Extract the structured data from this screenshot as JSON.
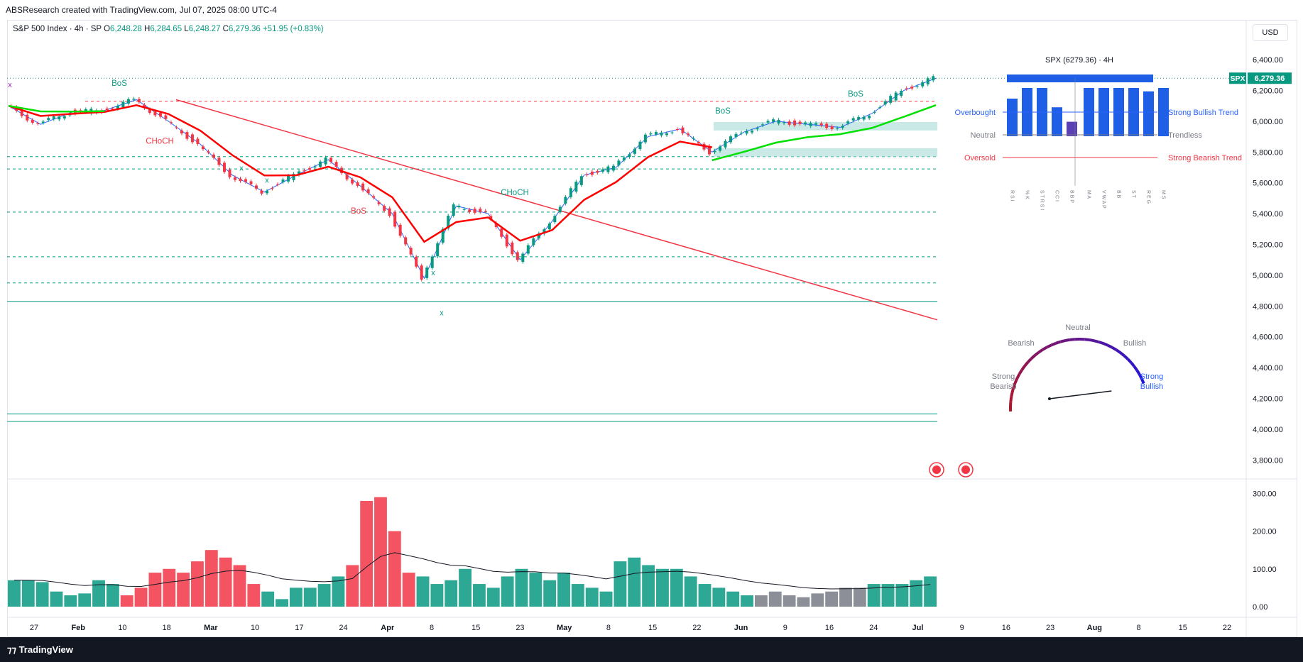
{
  "header": {
    "credit": "ABSResearch created with TradingView.com, Jul 07, 2025 08:00 UTC-4",
    "symbol_desc": "S&P 500 Index · 4h · SP",
    "ohlc": [
      {
        "label": "O",
        "value": "6,248.28"
      },
      {
        "label": "H",
        "value": "6,284.65"
      },
      {
        "label": "L",
        "value": "6,248.27"
      },
      {
        "label": "C",
        "value": "6,279.36"
      }
    ],
    "change": "+51.95 (+0.83%)"
  },
  "currency_button": "USD",
  "price_tag": {
    "symbol": "SPX",
    "value": "6,279.36"
  },
  "footer": {
    "brand": "TradingView"
  },
  "colors": {
    "up": "#089981",
    "down": "#f23645",
    "ema_fast": "#ff0000",
    "ema_slow": "#00e000",
    "trendline": "#f23645",
    "structure": "#2962ff",
    "zone": "#b2dfdb",
    "tag": "#089981"
  },
  "chart_data": {
    "type": "line",
    "title": "S&P 500 Index · 4h · SP",
    "price_axis": {
      "ticks": [
        "6,400.00",
        "6,200.00",
        "6,000.00",
        "5,800.00",
        "5,600.00",
        "5,400.00",
        "5,200.00",
        "5,000.00",
        "4,800.00",
        "4,600.00",
        "4,400.00",
        "4,200.00",
        "4,000.00",
        "3,800.00"
      ],
      "ylim": [
        3700,
        6520
      ]
    },
    "volume_axis": {
      "ticks": [
        "300.00",
        "200.00",
        "100.00",
        "0.00"
      ],
      "ylim": [
        0,
        310
      ]
    },
    "time_axis": {
      "ticks": [
        "27",
        "Feb",
        "10",
        "18",
        "Mar",
        "10",
        "17",
        "24",
        "Apr",
        "8",
        "15",
        "23",
        "May",
        "8",
        "15",
        "22",
        "Jun",
        "9",
        "16",
        "24",
        "Jul",
        "9",
        "16",
        "23",
        "Aug",
        "8",
        "15",
        "22"
      ]
    },
    "last_price": 6279.36,
    "series": [
      {
        "name": "",
        "x": [
          "Jan 23",
          "Jan 27",
          "Feb 3",
          "Feb 10",
          "Feb 19",
          "Feb 24",
          "Mar 3",
          "Mar 10",
          "Mar 13",
          "Mar 17",
          "Mar 24",
          "Mar 28",
          "Apr 3",
          "Apr 7",
          "Apr 9",
          "Apr 15",
          "Apr 21",
          "Apr 25",
          "May 2",
          "May 8",
          "May 13",
          "May 19",
          "May 23",
          "Jun 2",
          "Jun 9",
          "Jun 13",
          "Jun 20",
          "Jun 24",
          "Jun 30",
          "Jul 3"
        ],
        "values": [
          6100,
          5980,
          6060,
          6070,
          6140,
          6000,
          5850,
          5650,
          5540,
          5650,
          5750,
          5580,
          5400,
          4980,
          5450,
          5400,
          5100,
          5350,
          5650,
          5700,
          5900,
          5950,
          5800,
          5930,
          6000,
          5980,
          5960,
          6050,
          6200,
          6279.36
        ]
      }
    ],
    "levels": [
      {
        "name": "",
        "value": 6130,
        "style": "dashed-red"
      },
      {
        "name": "",
        "value": 5770,
        "style": "dashed-green"
      },
      {
        "name": "",
        "value": 5690,
        "style": "dashed-green"
      },
      {
        "name": "",
        "value": 5410,
        "style": "dashed-green"
      },
      {
        "name": "",
        "value": 5120,
        "style": "dashed-green"
      },
      {
        "name": "",
        "value": 4950,
        "style": "dashed-green"
      },
      {
        "name": "",
        "value": 4830,
        "style": "solid-teal"
      },
      {
        "name": "",
        "value": 4100,
        "style": "solid-teal"
      },
      {
        "name": "",
        "value": 4050,
        "style": "solid-teal"
      }
    ],
    "annotations": [
      {
        "text": "BoS",
        "date": "Feb 10",
        "price": 6230,
        "color": "#089981"
      },
      {
        "text": "CHoCH",
        "date": "Feb 20",
        "price": 5855,
        "color": "#f23645"
      },
      {
        "text": "BoS",
        "date": "Apr 1",
        "price": 5400,
        "color": "#f23645"
      },
      {
        "text": "CHoCH",
        "date": "Apr 25",
        "price": 5520,
        "color": "#089981"
      },
      {
        "text": "BoS",
        "date": "May 21",
        "price": 6050,
        "color": "#089981"
      },
      {
        "text": "BoS",
        "date": "Jun 26",
        "price": 6160,
        "color": "#089981"
      },
      {
        "text": "x",
        "date": "Jan 23",
        "price": 6220,
        "color": "#9c27b0"
      },
      {
        "text": "x",
        "date": "Mar 7",
        "price": 5680,
        "color": "#089981"
      },
      {
        "text": "x",
        "date": "Mar 11",
        "price": 5600,
        "color": "#089981"
      },
      {
        "text": "x",
        "date": "Apr 6",
        "price": 5000,
        "color": "#089981"
      },
      {
        "text": "x",
        "date": "Apr 8",
        "price": 4740,
        "color": "#089981"
      }
    ],
    "volume": {
      "series": [
        {
          "name": "",
          "values": [
            70,
            70,
            65,
            40,
            30,
            35,
            70,
            60,
            30,
            50,
            90,
            100,
            90,
            120,
            150,
            130,
            110,
            60,
            40,
            20,
            50,
            50,
            60,
            80,
            110,
            280,
            290,
            200,
            90,
            80,
            60,
            70,
            100,
            60,
            50,
            80,
            100,
            90,
            70,
            90,
            60,
            50,
            40,
            120,
            130,
            110,
            100,
            100,
            80,
            60,
            50,
            40,
            30,
            30,
            40,
            30,
            25,
            35,
            40,
            50,
            50,
            60,
            60,
            60,
            70,
            80
          ]
        }
      ]
    },
    "dashboard": {
      "title": "SPX (6279.36) · 4H",
      "left_labels": [
        "Overbought",
        "Neutral",
        "Oversold"
      ],
      "right_labels": [
        "Strong Bullish Trend",
        "Trendless",
        "Strong Bearish Trend"
      ],
      "oscillators": [
        {
          "name": "RSI",
          "value": 0.78
        },
        {
          "name": "%K",
          "value": 1.0
        },
        {
          "name": "STRSI",
          "value": 1.0
        },
        {
          "name": "CCI",
          "value": 0.6
        },
        {
          "name": "BBP",
          "value": 0.3
        }
      ],
      "trend": [
        {
          "name": "MA",
          "value": 1.0
        },
        {
          "name": "VWAP",
          "value": 1.0
        },
        {
          "name": "BB",
          "value": 1.0
        },
        {
          "name": "ST",
          "value": 1.0
        },
        {
          "name": "REG",
          "value": 0.93
        },
        {
          "name": "MS",
          "value": 1.0
        }
      ]
    },
    "gauge": {
      "labels": [
        "Strong Bearish",
        "Bearish",
        "Neutral",
        "Bullish",
        "Strong Bullish"
      ],
      "value": 0.9
    }
  }
}
